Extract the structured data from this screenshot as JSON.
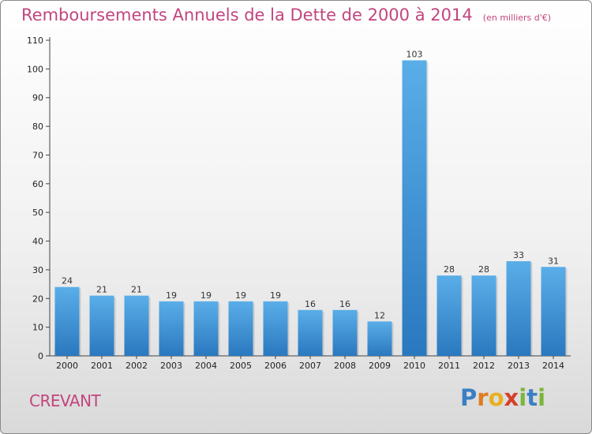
{
  "chart_data": {
    "type": "bar",
    "title": "Remboursements Annuels de la Dette de 2000 à 2014",
    "subtitle": "(en milliers d'€)",
    "categories": [
      "2000",
      "2001",
      "2002",
      "2003",
      "2004",
      "2005",
      "2006",
      "2007",
      "2008",
      "2009",
      "2010",
      "2011",
      "2012",
      "2013",
      "2014"
    ],
    "values": [
      24,
      21,
      21,
      19,
      19,
      19,
      19,
      16,
      16,
      12,
      103,
      28,
      28,
      33,
      31
    ],
    "ylim": [
      0,
      110
    ],
    "yticks": [
      0,
      10,
      20,
      30,
      40,
      50,
      60,
      70,
      80,
      90,
      100,
      110
    ],
    "xlabel": "",
    "ylabel": "",
    "grid": false,
    "bar_color": "#3d95d8",
    "data_labels": true
  },
  "commune": "CREVANT",
  "brand": {
    "letters": [
      "P",
      "r",
      "o",
      "x",
      "i",
      "t",
      "i"
    ],
    "colors": [
      "#3b7fc4",
      "#e07b1f",
      "#e8b020",
      "#d63f2a",
      "#7bb53a",
      "#3b7fc4",
      "#7bb53a"
    ]
  },
  "colors": {
    "title": "#c2457e",
    "axis": "#444444"
  }
}
